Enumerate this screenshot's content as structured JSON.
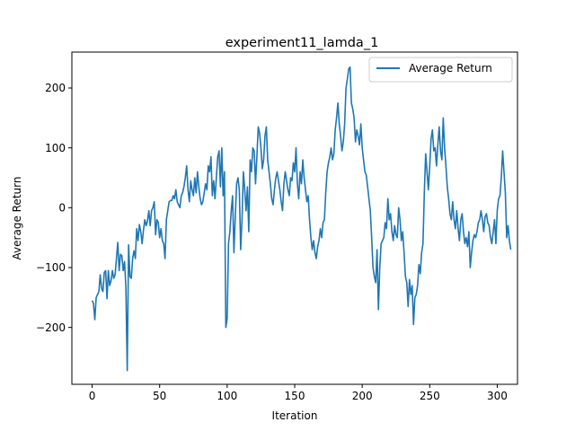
{
  "chart_data": {
    "type": "line",
    "title": "experiment11_lamda_1",
    "xlabel": "Iteration",
    "ylabel": "Average Return",
    "xlim": [
      -15,
      315
    ],
    "ylim": [
      -295,
      260
    ],
    "xticks": [
      0,
      50,
      100,
      150,
      200,
      250,
      300
    ],
    "yticks": [
      -200,
      -100,
      0,
      100,
      200
    ],
    "grid": false,
    "legend_position": "upper right",
    "series": [
      {
        "name": "Average Return",
        "color": "#1f77b4",
        "x_start": 0,
        "x_step": 1,
        "values": [
          -155,
          -160,
          -187,
          -150,
          -145,
          -140,
          -112,
          -135,
          -140,
          -108,
          -105,
          -152,
          -105,
          -130,
          -122,
          -105,
          -118,
          -112,
          -85,
          -58,
          -105,
          -78,
          -80,
          -105,
          -90,
          -133,
          -272,
          -62,
          -115,
          -118,
          -85,
          -72,
          -85,
          -35,
          -55,
          -28,
          -40,
          -60,
          -38,
          -20,
          -30,
          -22,
          -5,
          -30,
          -5,
          0,
          10,
          -45,
          -20,
          -25,
          -50,
          -35,
          -55,
          -60,
          -85,
          -20,
          -5,
          10,
          12,
          12,
          20,
          15,
          30,
          10,
          5,
          0,
          20,
          25,
          35,
          50,
          70,
          30,
          10,
          45,
          30,
          20,
          50,
          25,
          60,
          35,
          15,
          5,
          10,
          25,
          40,
          30,
          70,
          60,
          85,
          20,
          45,
          15,
          50,
          85,
          95,
          35,
          100,
          20,
          60,
          -200,
          -185,
          -60,
          -40,
          -5,
          20,
          -75,
          -15,
          40,
          50,
          30,
          -70,
          -20,
          60,
          30,
          -5,
          35,
          -40,
          80,
          60,
          100,
          95,
          40,
          85,
          135,
          125,
          100,
          65,
          80,
          120,
          135,
          80,
          60,
          40,
          15,
          5,
          30,
          50,
          60,
          45,
          30,
          10,
          -5,
          40,
          60,
          45,
          30,
          20,
          50,
          45,
          75,
          60,
          100,
          40,
          15,
          60,
          40,
          80,
          50,
          30,
          10,
          20,
          -20,
          -50,
          -70,
          -55,
          -75,
          -85,
          -65,
          -55,
          -35,
          -50,
          -25,
          -20,
          25,
          60,
          75,
          85,
          100,
          80,
          90,
          130,
          150,
          175,
          140,
          120,
          95,
          110,
          140,
          200,
          215,
          232,
          235,
          175,
          165,
          150,
          110,
          130,
          120,
          105,
          140,
          100,
          80,
          60,
          55,
          35,
          15,
          -5,
          -50,
          -100,
          -115,
          -125,
          -70,
          -170,
          -100,
          -60,
          -55,
          -50,
          -25,
          -35,
          15,
          -20,
          -10,
          -40,
          -55,
          -30,
          -45,
          -50,
          0,
          -20,
          -55,
          -40,
          -75,
          -115,
          -125,
          -165,
          -120,
          -145,
          -130,
          -195,
          -150,
          -145,
          -130,
          -95,
          -110,
          -75,
          -60,
          25,
          90,
          60,
          30,
          70,
          115,
          130,
          95,
          100,
          70,
          105,
          135,
          95,
          80,
          150,
          100,
          70,
          35,
          15,
          -10,
          -20,
          10,
          -20,
          -35,
          -5,
          -35,
          -55,
          -20,
          -10,
          -40,
          -60,
          -50,
          -65,
          -40,
          -100,
          -75,
          -55,
          -45,
          -50,
          -40,
          -25,
          -20,
          -5,
          -20,
          -40,
          -15,
          -10,
          -25,
          -30,
          -50,
          -60,
          -40,
          -20,
          -60,
          -5,
          15,
          20,
          50,
          95,
          60,
          25,
          -50,
          -30,
          -55,
          -70
        ]
      }
    ]
  }
}
